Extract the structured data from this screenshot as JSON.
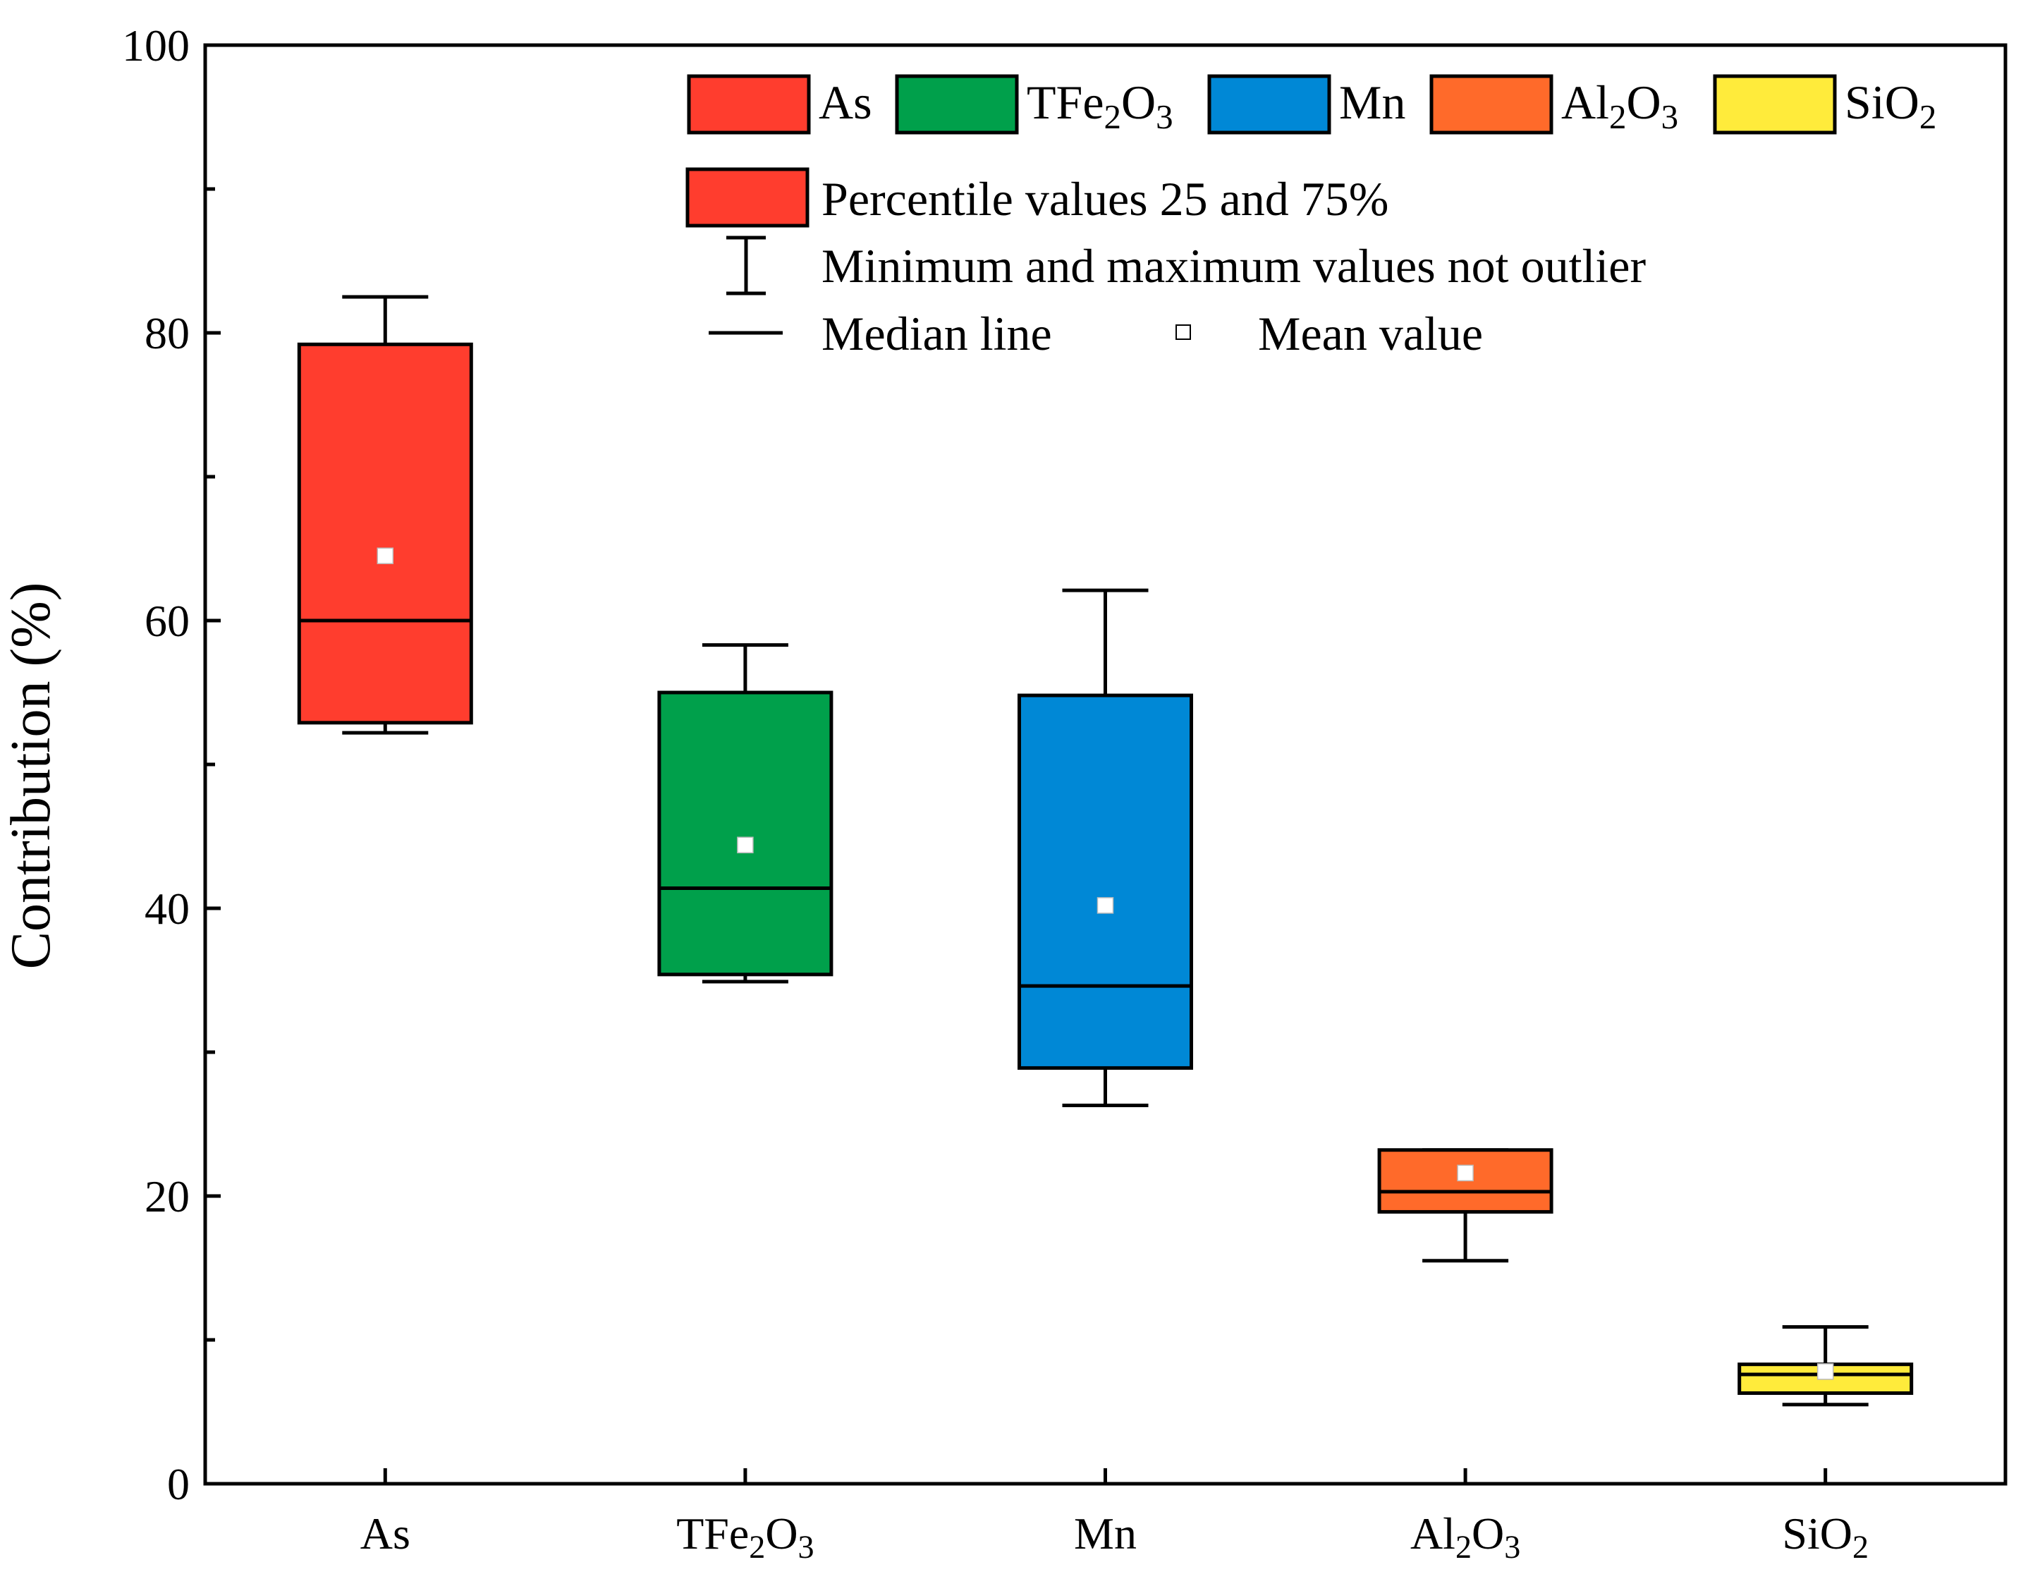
{
  "chart_data": {
    "type": "box",
    "title": "",
    "xlabel": "",
    "ylabel": "Contribution (%)",
    "ylim": [
      0,
      100
    ],
    "yticks": [
      0,
      20,
      40,
      60,
      80,
      100
    ],
    "grid": false,
    "legend_position": "top-right",
    "series": [
      {
        "name": "As",
        "label_base": "As",
        "label_parts": [
          [
            "As",
            ""
          ]
        ],
        "color": "#FF3D2E",
        "min": 52.2,
        "q1": 52.9,
        "median": 60.0,
        "q3": 79.2,
        "max": 82.5,
        "mean": 64.5
      },
      {
        "name": "TFe2O3",
        "label_base": "TFe",
        "label_parts": [
          [
            "TFe",
            "2"
          ],
          [
            "O",
            "3"
          ]
        ],
        "color": "#00A04B",
        "min": 34.9,
        "q1": 35.4,
        "median": 41.4,
        "q3": 55.0,
        "max": 58.3,
        "mean": 44.4
      },
      {
        "name": "Mn",
        "label_base": "Mn",
        "label_parts": [
          [
            "Mn",
            ""
          ]
        ],
        "color": "#0088D6",
        "min": 26.3,
        "q1": 28.9,
        "median": 34.6,
        "q3": 54.8,
        "max": 62.1,
        "mean": 40.2
      },
      {
        "name": "Al2O3",
        "label_base": "Al",
        "label_parts": [
          [
            "Al",
            "2"
          ],
          [
            "O",
            "3"
          ]
        ],
        "color": "#FF6A2A",
        "min": 15.5,
        "q1": 18.9,
        "median": 20.3,
        "q3": 23.2,
        "max": 23.2,
        "mean": 21.6
      },
      {
        "name": "SiO2",
        "label_base": "SiO",
        "label_parts": [
          [
            "SiO",
            "2"
          ]
        ],
        "color": "#FFEB3B",
        "min": 5.5,
        "q1": 6.3,
        "median": 7.6,
        "q3": 8.3,
        "max": 10.9,
        "mean": 7.8
      }
    ],
    "legend_extra": {
      "box_label": "Percentile values 25 and 75%",
      "whisker_label": "Minimum and maximum values not outlier",
      "median_label": "Median line",
      "mean_label": "Mean value"
    }
  }
}
